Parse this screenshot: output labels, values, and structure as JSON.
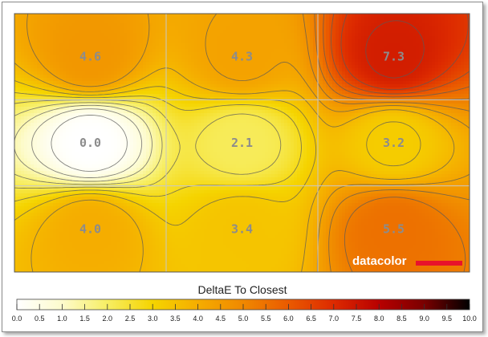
{
  "chart_data": {
    "type": "heatmap",
    "title": "DeltaE To Closest",
    "rows": 3,
    "cols": 3,
    "values": [
      [
        4.6,
        4.3,
        7.3
      ],
      [
        0.0,
        2.1,
        3.2
      ],
      [
        4.0,
        3.4,
        5.5
      ]
    ],
    "labels": [
      [
        "4.6",
        "4.3",
        "7.3"
      ],
      [
        "0.0",
        "2.1",
        "3.2"
      ],
      [
        "4.0",
        "3.4",
        "5.5"
      ]
    ],
    "scale": {
      "min": 0,
      "max": 10,
      "ticks": [
        "0.0",
        "0.5",
        "1.0",
        "1.5",
        "2.0",
        "2.5",
        "3.0",
        "3.5",
        "4.0",
        "4.5",
        "5.0",
        "5.5",
        "6.0",
        "6.5",
        "7.0",
        "7.5",
        "8.0",
        "8.5",
        "9.0",
        "9.5",
        "10.0"
      ]
    },
    "grid": true,
    "contours": true
  },
  "brand": {
    "text": "datacolor",
    "bar_color": "#e8132b"
  },
  "colors": {
    "scale_stops": [
      "#ffffff",
      "#fdfbcc",
      "#f7ee63",
      "#f5d400",
      "#f5ad00",
      "#f08800",
      "#ea5a00",
      "#dd2a00",
      "#b80000",
      "#7a0000",
      "#000000"
    ]
  }
}
